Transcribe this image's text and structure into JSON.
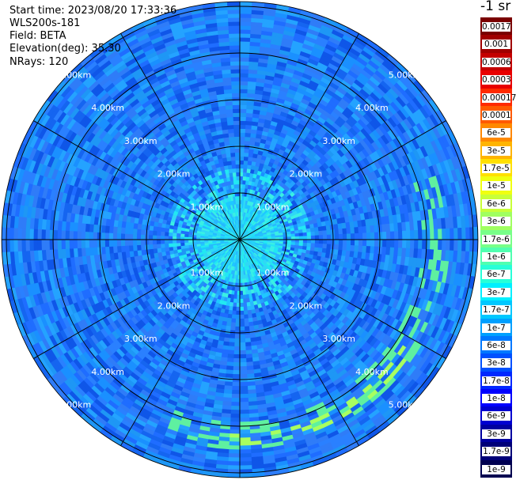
{
  "header": {
    "start_time": "Start time: 2023/08/20 17:33:36",
    "instrument": "WLS200s-181",
    "field": "Field: BETA",
    "elevation": "Elevation(deg): 35.30",
    "nrays": "NRays: 120"
  },
  "colorbar": {
    "unit_label": "-1 sr",
    "labels": [
      "0.0017",
      "0.001",
      "0.0006",
      "0.0003",
      "0.00017",
      "0.0001",
      "6e-5",
      "3e-5",
      "1.7e-5",
      "1e-5",
      "6e-6",
      "3e-6",
      "1.7e-6",
      "1e-6",
      "6e-7",
      "3e-7",
      "1.7e-7",
      "1e-7",
      "6e-8",
      "3e-8",
      "1.7e-8",
      "1e-8",
      "6e-9",
      "3e-9",
      "1.7e-9",
      "1e-9"
    ],
    "colors": [
      "#7a0000",
      "#a00000",
      "#c40000",
      "#e80000",
      "#ff2a00",
      "#ff5a00",
      "#ff8800",
      "#ffb400",
      "#ffe000",
      "#f0ff10",
      "#c8ff38",
      "#a0ff60",
      "#78ff88",
      "#50ffb0",
      "#28ffd8",
      "#00f0ff",
      "#00c8ff",
      "#00a0ff",
      "#0078ff",
      "#0050ff",
      "#0028ff",
      "#0000ff",
      "#0000d0",
      "#0000a0",
      "#000078",
      "#000050"
    ]
  },
  "chart_data": {
    "type": "polar-ppi",
    "field": "BETA",
    "range_rings_km": [
      1,
      2,
      3,
      4,
      5
    ],
    "range_labels": [
      "1.00km",
      "2.00km",
      "3.00km",
      "4.00km",
      "5.00km"
    ],
    "max_range_km": 5.1,
    "spoke_angles_deg": [
      0,
      30,
      60,
      90,
      120,
      150,
      180,
      210,
      240,
      270,
      300,
      330
    ],
    "n_rays": 120,
    "background_level": "3e-8 to 1e-7",
    "near_range_level": "1.7e-7 to 3e-7"
  }
}
